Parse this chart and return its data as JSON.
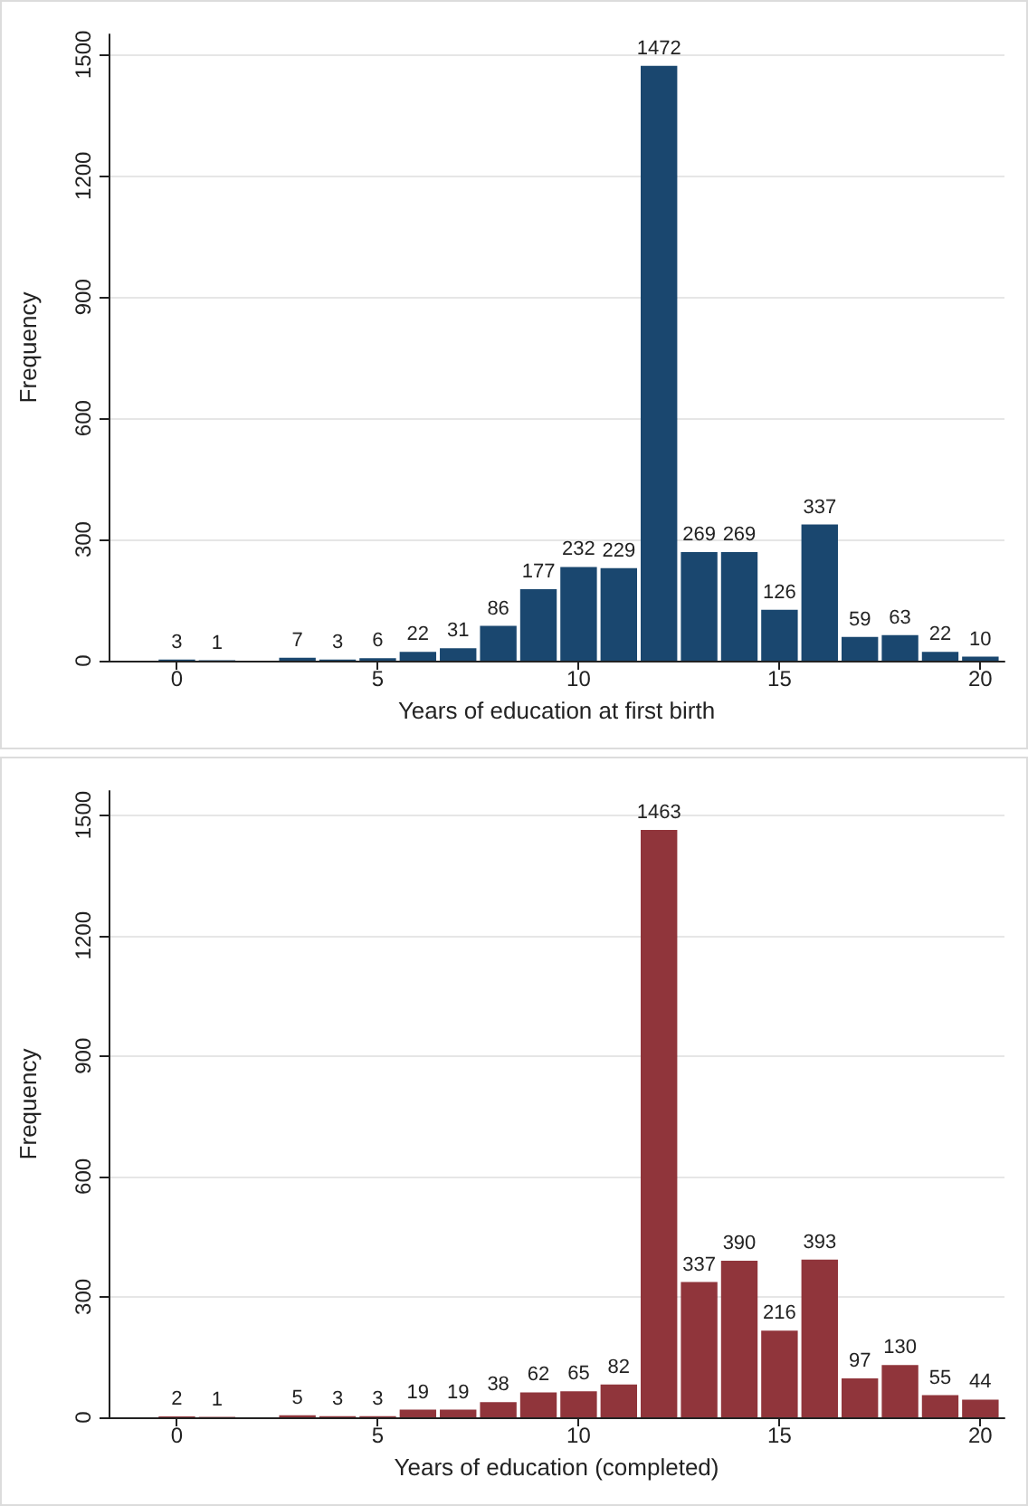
{
  "chart_data": [
    {
      "type": "histogram",
      "xlabel": "Years of education at first birth",
      "ylabel": "Frequency",
      "color": "#1a476f",
      "bins": [
        -0.5,
        0.5,
        1.5,
        2.5,
        3.5,
        4.5,
        5.5,
        6.5,
        7.5,
        8.5,
        9.5,
        10.5,
        11.5,
        12.5,
        13.5,
        14.5,
        15.5,
        16.5,
        17.5,
        18.5,
        19.5,
        20.5
      ],
      "values": [
        3,
        1,
        0,
        7,
        3,
        6,
        22,
        31,
        86,
        177,
        232,
        229,
        1472,
        269,
        269,
        126,
        337,
        59,
        63,
        22,
        10
      ],
      "value_labels": [
        "3",
        "1",
        null,
        "7",
        "3",
        "6",
        "22",
        "31",
        "86",
        "177",
        "232",
        "229",
        "1472",
        "269",
        "269",
        "126",
        "337",
        "59",
        "63",
        "22",
        "10"
      ],
      "xlim": [
        -1.7,
        20.6
      ],
      "xticks": [
        0,
        5,
        10,
        15,
        20
      ],
      "ylim": [
        0,
        1550
      ],
      "yticks": [
        0,
        300,
        600,
        900,
        1200,
        1500
      ],
      "grid": "y"
    },
    {
      "type": "histogram",
      "xlabel": "Years of education (completed)",
      "ylabel": "Frequency",
      "color": "#90353b",
      "bins": [
        -0.5,
        0.5,
        1.5,
        2.5,
        3.5,
        4.5,
        5.5,
        6.5,
        7.5,
        8.5,
        9.5,
        10.5,
        11.5,
        12.5,
        13.5,
        14.5,
        15.5,
        16.5,
        17.5,
        18.5,
        19.5,
        20.5
      ],
      "values": [
        2,
        1,
        0,
        5,
        3,
        3,
        19,
        19,
        38,
        62,
        65,
        82,
        1463,
        337,
        390,
        216,
        393,
        97,
        130,
        55,
        44
      ],
      "value_labels": [
        "2",
        "1",
        null,
        "5",
        "3",
        "3",
        "19",
        "19",
        "38",
        "62",
        "65",
        "82",
        "1463",
        "337",
        "390",
        "216",
        "393",
        "97",
        "130",
        "55",
        "44"
      ],
      "xlim": [
        -1.7,
        20.6
      ],
      "xticks": [
        0,
        5,
        10,
        15,
        20
      ],
      "ylim": [
        0,
        1560
      ],
      "yticks": [
        0,
        300,
        600,
        900,
        1200,
        1500
      ],
      "grid": "y"
    }
  ]
}
